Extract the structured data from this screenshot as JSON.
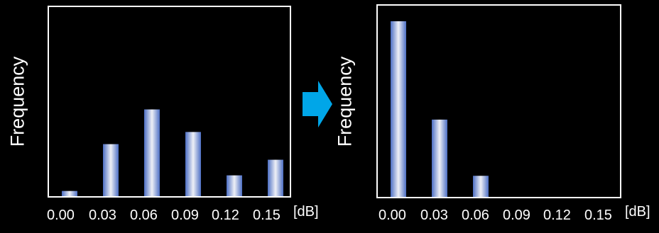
{
  "colors": {
    "background": "#000000",
    "axis": "#ffffff",
    "bar_center": "#eef0f6",
    "bar_edge": "#4d6fc4",
    "arrow": "#00a6e8"
  },
  "arrow": {
    "icon": "right-arrow-icon"
  },
  "chart_data": [
    {
      "type": "bar",
      "categories": [
        "0.00",
        "0.03",
        "0.06",
        "0.09",
        "0.12",
        "0.15"
      ],
      "values": [
        3,
        30,
        50,
        37,
        12,
        21
      ],
      "ylabel": "Frequency",
      "unit_label": "[dB]",
      "ylim": [
        0,
        100
      ],
      "grid": false,
      "legend": "none"
    },
    {
      "type": "bar",
      "categories": [
        "0.00",
        "0.03",
        "0.06",
        "0.09",
        "0.12",
        "0.15"
      ],
      "values": [
        100,
        44,
        12,
        0,
        0,
        0
      ],
      "ylabel": "Frequency",
      "unit_label": "[dB]",
      "ylim": [
        0,
        100
      ],
      "grid": false,
      "legend": "none"
    }
  ]
}
